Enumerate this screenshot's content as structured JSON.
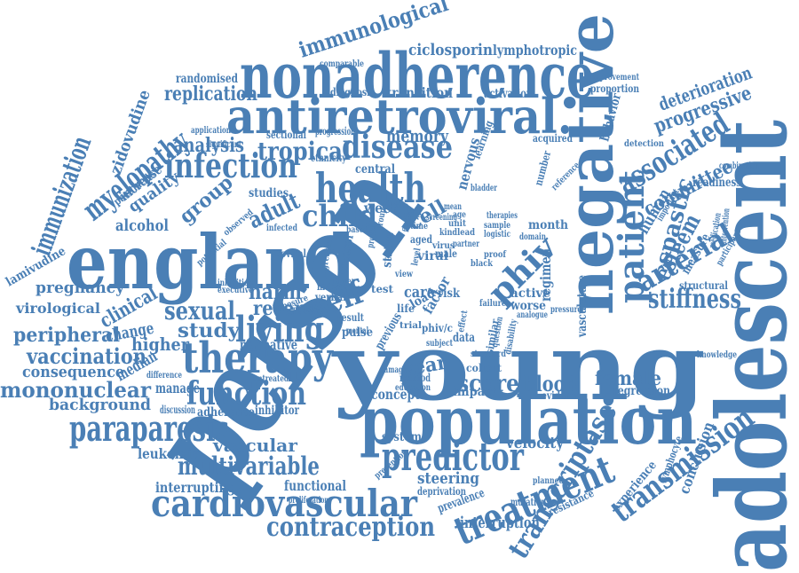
{
  "cloud": {
    "color": "#4a7fb5",
    "words": [
      "person",
      "young",
      "england",
      "adolescent",
      "nonadherence",
      "antiretroviral.",
      "negative",
      "population",
      "paraparesis",
      "cardiovascular",
      "therapy",
      "treatment",
      "predictor",
      "health",
      "living",
      "infection",
      "disease",
      "patient",
      "child",
      "associated",
      "transmission",
      "transcriptase",
      "contraception",
      "function",
      "stiffness",
      "self",
      "arterial",
      "phiv",
      "myelopathy",
      "sexual",
      "tropical",
      "immunological",
      "immunization",
      "multivariable",
      "mononuclear",
      "vaccination",
      "replication",
      "esteem",
      "spastic",
      "committee",
      "progressive",
      "deterioration",
      "harm",
      "adult",
      "group",
      "reverse",
      "study",
      "memory",
      "cell",
      "score",
      "blood",
      "year",
      "female",
      "peripheral",
      "higher",
      "consequence",
      "background",
      "velocity",
      "steering",
      "interruption",
      "vascular",
      "leukemia",
      "interrupting",
      "functional",
      "manage",
      "adherence",
      "inhibitor",
      "discussion",
      "median",
      "change",
      "virological",
      "clinical",
      "pregnancy",
      "lamivudine",
      "alcohol",
      "quality",
      "increase",
      "paediatric",
      "zidovudine",
      "randomised",
      "analysis",
      "transition",
      "diagnosis",
      "activation",
      "lymphotropic",
      "ciclosporin",
      "comparable",
      "improvement",
      "proportion",
      "behavior",
      "detection",
      "readiness",
      "human",
      "measure",
      "structural",
      "knowledge",
      "regression",
      "conclusion",
      "lymphocyte",
      "experience",
      "resistance",
      "mutation",
      "prevalence",
      "deprivation",
      "system",
      "concept",
      "impact",
      "evidence",
      "cohort",
      "standard",
      "normative",
      "pulse",
      "active",
      "worse",
      "regimen",
      "month",
      "week",
      "viral",
      "central",
      "nervous",
      "acquired",
      "learning",
      "bladder",
      "ethnicity",
      "sectional",
      "progression",
      "application",
      "significant",
      "studies",
      "proviral",
      "marker",
      "verbal",
      "control",
      "status",
      "aged",
      "male",
      "black",
      "proof",
      "factor",
      "care",
      "risk",
      "load",
      "life",
      "test",
      "trial",
      "result",
      "previous",
      "method",
      "education",
      "untreated",
      "difference",
      "exposure",
      "primary",
      "potential",
      "executive",
      "inhibition",
      "observed",
      "infected",
      "vasculature",
      "analogue",
      "pressure",
      "planned",
      "prevention",
      "proliferation",
      "participant",
      "combination",
      "medication",
      "intervention",
      "important",
      "similar",
      "number",
      "reference",
      "phiv/c",
      "logistic",
      "therapies",
      "sample",
      "failure",
      "effect",
      "data",
      "level",
      "partner",
      "virus",
      "lower",
      "greater",
      "damage",
      "mental",
      "subject",
      "disability",
      "question",
      "view",
      "based",
      "nicotine",
      "finding",
      "rate",
      "time",
      "profile",
      "group",
      "screening",
      "domain",
      "kind",
      "unit",
      "age",
      "lead",
      "mean"
    ]
  }
}
